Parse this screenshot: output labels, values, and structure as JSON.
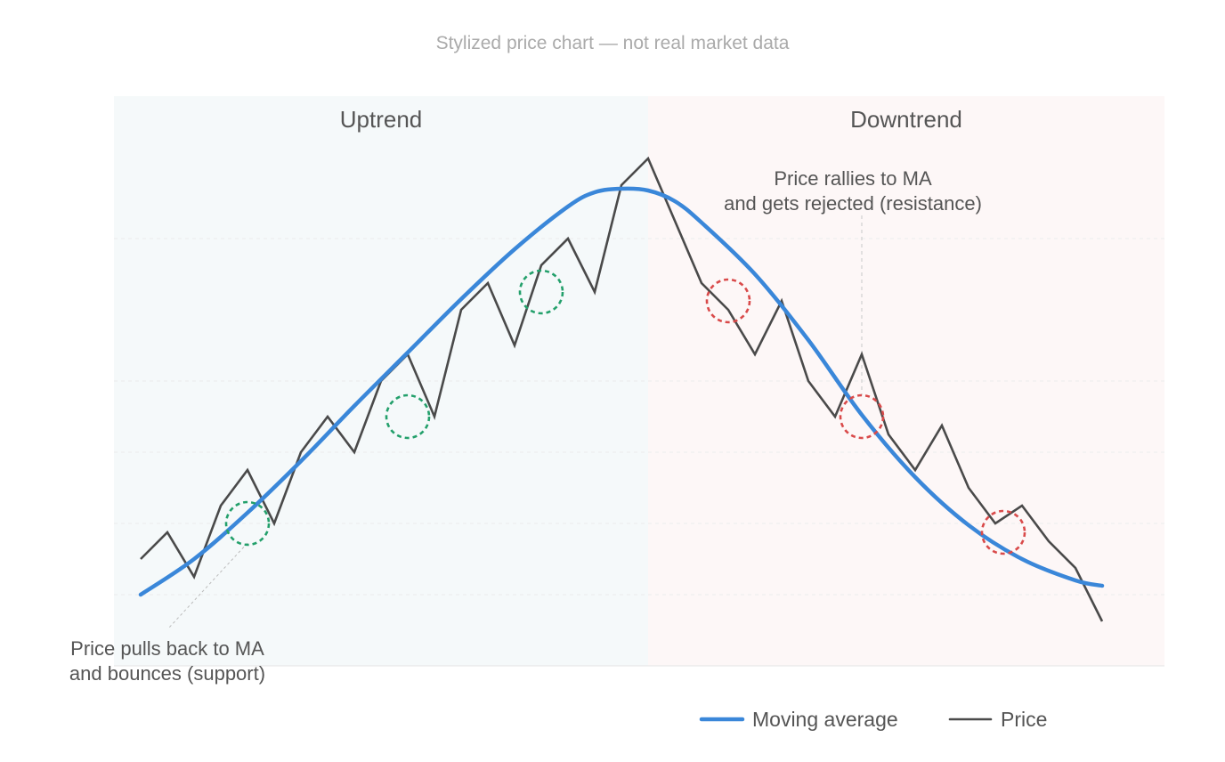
{
  "caption": "Stylized price chart — not real market data",
  "chart_data": {
    "type": "line",
    "title": "",
    "xlabel": "",
    "ylabel": "",
    "xlim": [
      0,
      37
    ],
    "ylim": [
      0,
      32
    ],
    "grid": true,
    "legend_position": "bottom",
    "regions": [
      {
        "name": "uptrend",
        "label": "Uptrend",
        "x_from": 0,
        "x_to": 20,
        "color": "#f5f9fa"
      },
      {
        "name": "downtrend",
        "label": "Downtrend",
        "x_from": 20,
        "x_to": 37,
        "color": "#fdf7f7"
      }
    ],
    "series": [
      {
        "name": "Moving average",
        "color": "#3a87d9",
        "x": [
          1,
          3,
          5,
          7,
          9,
          11,
          13,
          15,
          17,
          18,
          19,
          20,
          21,
          22,
          24,
          26,
          28,
          30,
          32,
          34,
          36,
          37
        ],
        "y": [
          4,
          6,
          8.6,
          11.5,
          14.6,
          17.6,
          20.6,
          23.4,
          25.8,
          26.6,
          26.8,
          26.7,
          26.1,
          24.9,
          22,
          18.3,
          14.1,
          10.6,
          7.9,
          6,
          4.8,
          4.5
        ]
      },
      {
        "name": "Price",
        "color": "#4a4a4a",
        "x": [
          1,
          2,
          3,
          4,
          5,
          6,
          7,
          8,
          9,
          10,
          11,
          12,
          13,
          14,
          15,
          16,
          17,
          18,
          19,
          20,
          21,
          22,
          23,
          24,
          25,
          26,
          27,
          28,
          29,
          30,
          31,
          32,
          33,
          34,
          35,
          36,
          37
        ],
        "y": [
          6,
          7.5,
          5,
          9,
          11,
          8,
          12,
          14,
          12,
          16,
          17.5,
          14,
          20,
          21.5,
          18,
          22.5,
          24,
          21,
          27,
          28.5,
          25,
          21.5,
          20,
          17.5,
          20.5,
          16,
          14,
          17.5,
          13,
          11,
          13.5,
          10,
          8,
          9,
          7,
          5.5,
          2.5
        ]
      }
    ],
    "support_markers": [
      {
        "x": 5,
        "y": 8
      },
      {
        "x": 11,
        "y": 14
      },
      {
        "x": 16,
        "y": 21
      }
    ],
    "resistance_markers": [
      {
        "x": 23,
        "y": 20.5
      },
      {
        "x": 28,
        "y": 14
      },
      {
        "x": 33.3,
        "y": 7.5
      }
    ],
    "annotations": [
      {
        "name": "support-annotation",
        "lines": [
          "Price pulls back to MA",
          "and bounces (support)"
        ],
        "points_to": {
          "x": 5,
          "y": 8
        }
      },
      {
        "name": "resistance-annotation",
        "lines": [
          "Price rallies to MA",
          "and gets rejected (resistance)"
        ],
        "points_to": {
          "x": 28,
          "y": 14
        }
      }
    ],
    "colors": {
      "support_marker": "#23a06b",
      "resistance_marker": "#d94a4a",
      "grid": "#ececec"
    }
  }
}
